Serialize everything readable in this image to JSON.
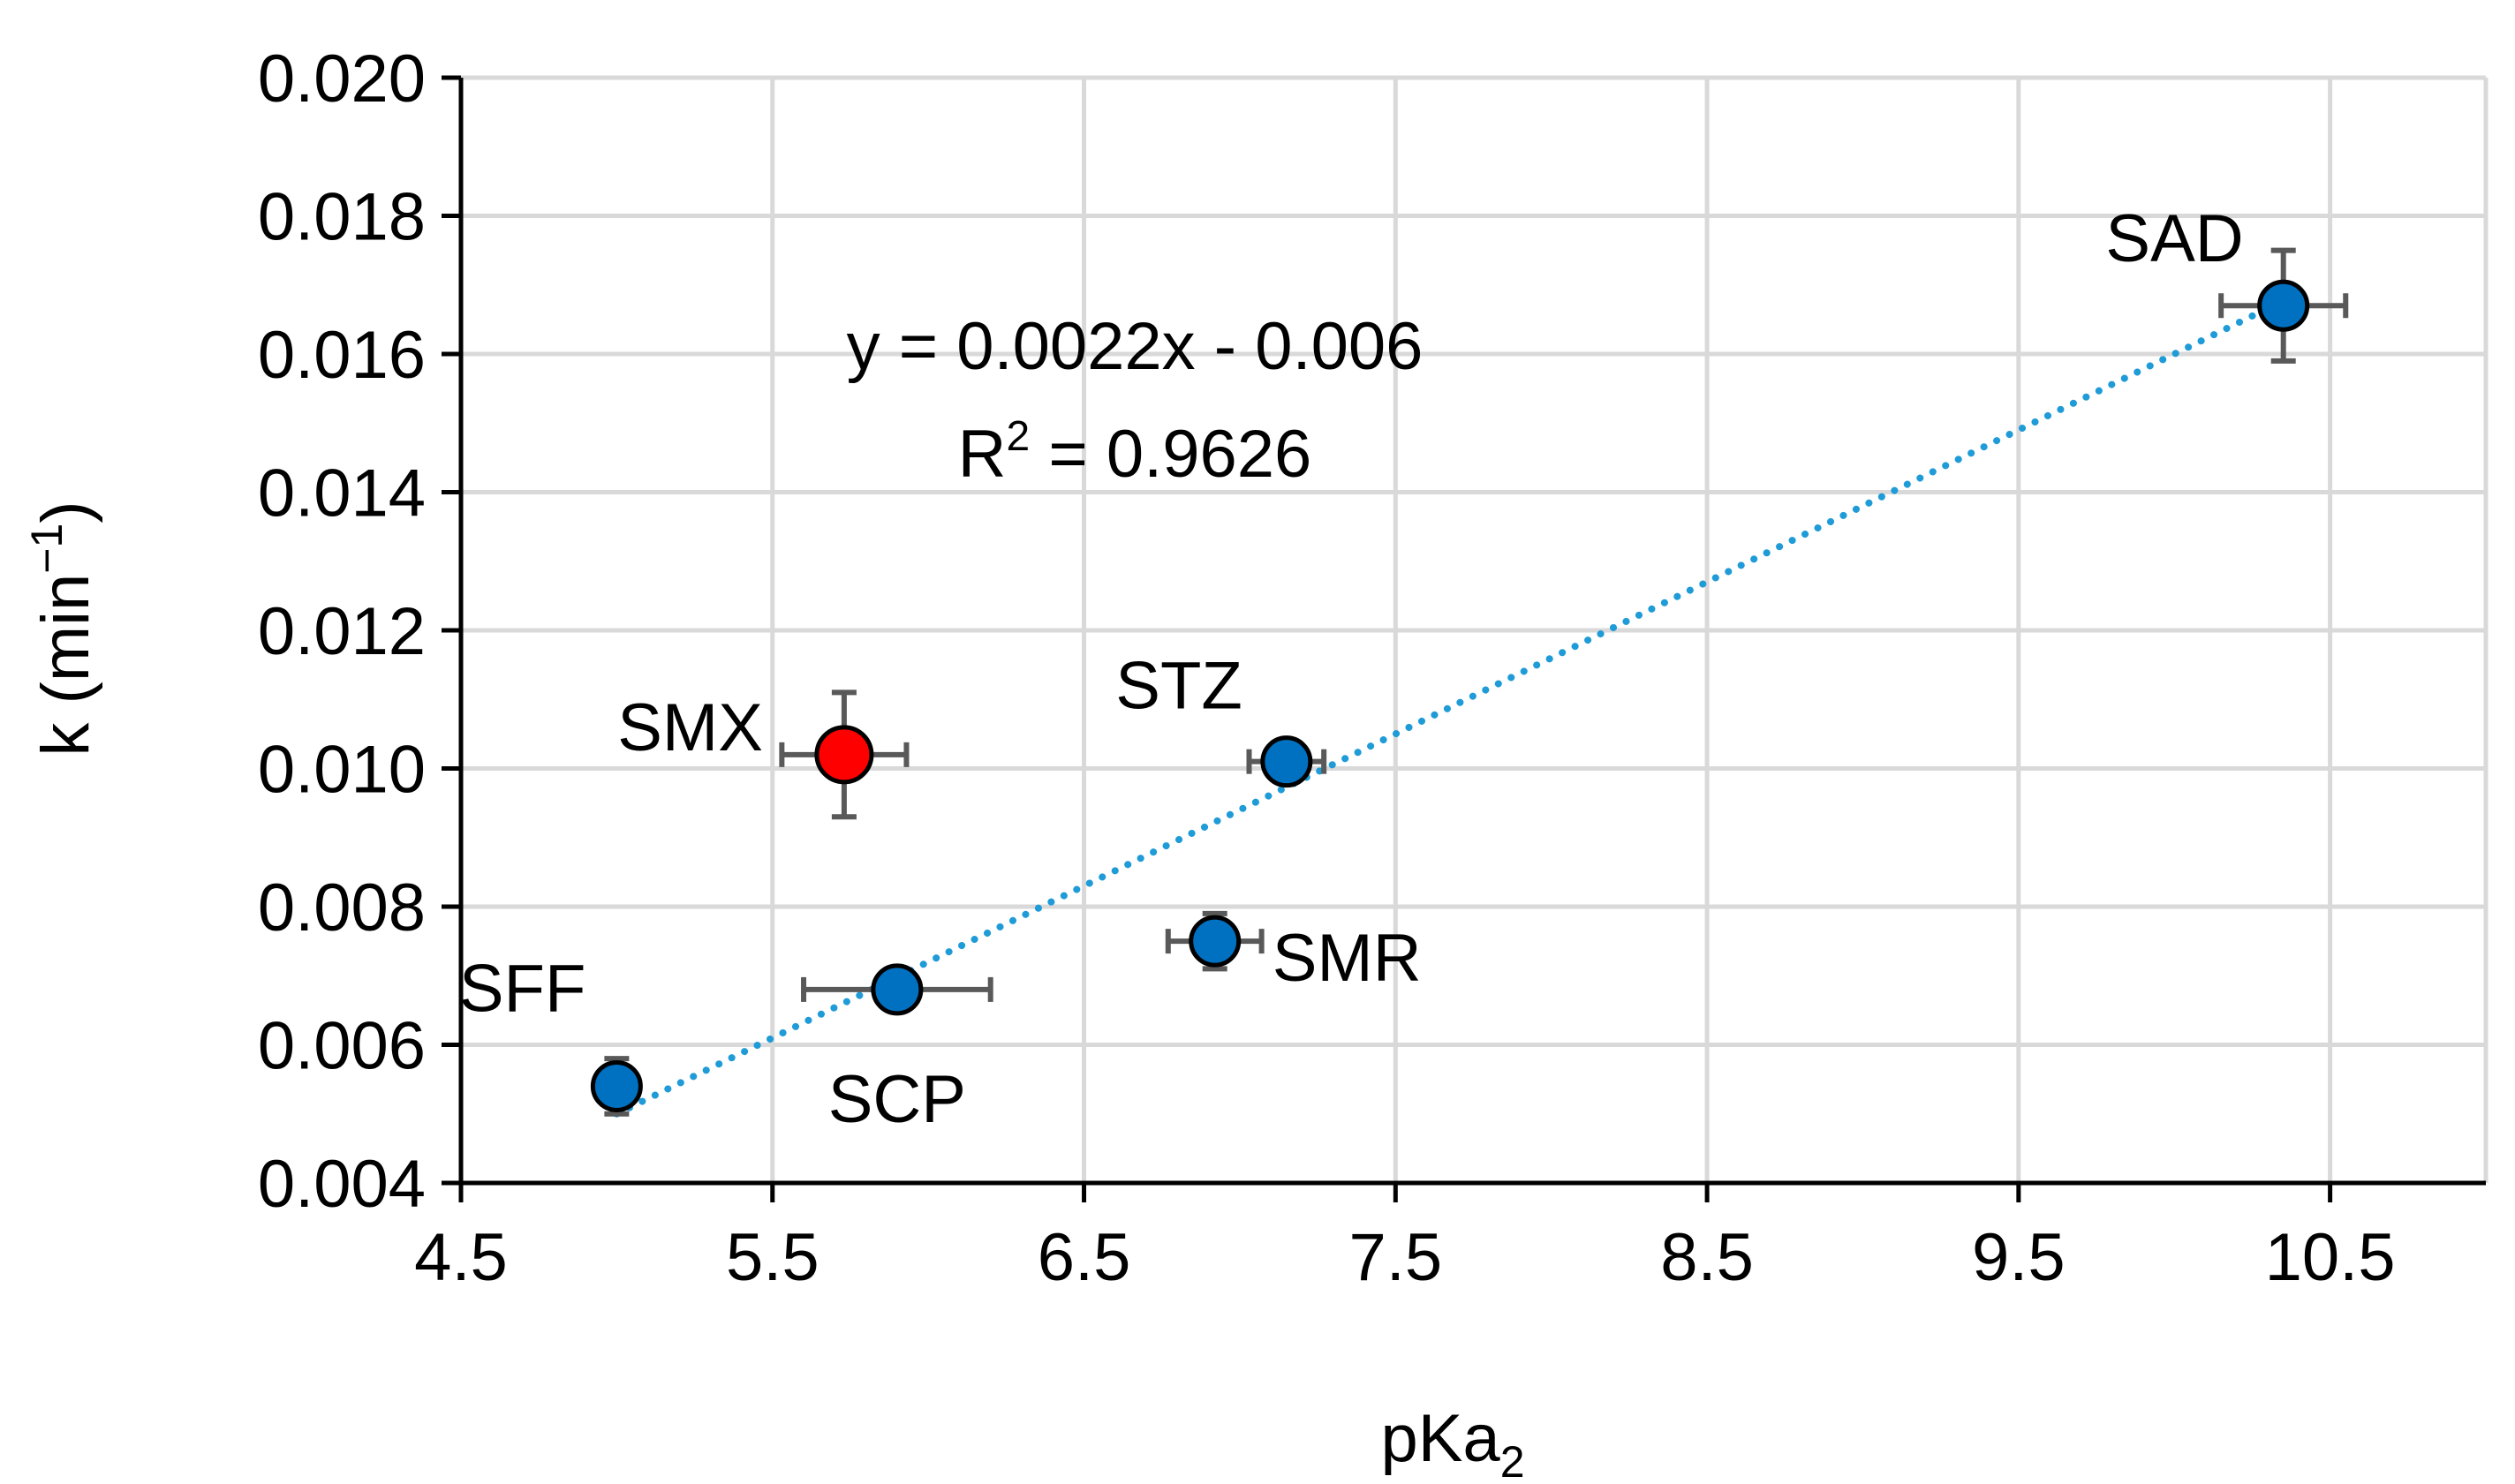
{
  "chart_data": {
    "type": "scatter",
    "title": "",
    "xlabel": "pKa",
    "xlabel_subscript": "2",
    "ylabel": "k (min",
    "ylabel_superscript": "−1",
    "ylabel_close": ")",
    "xlim": [
      4.5,
      11.0
    ],
    "ylim": [
      0.004,
      0.02
    ],
    "x_ticks": [
      4.5,
      5.5,
      6.5,
      7.5,
      8.5,
      9.5,
      10.5
    ],
    "x_tick_labels": [
      "4.5",
      "5.5",
      "6.5",
      "7.5",
      "8.5",
      "9.5",
      "10.5"
    ],
    "y_ticks": [
      0.004,
      0.006,
      0.008,
      0.01,
      0.012,
      0.014,
      0.016,
      0.018,
      0.02
    ],
    "y_tick_labels": [
      "0.004",
      "0.006",
      "0.008",
      "0.010",
      "0.012",
      "0.014",
      "0.016",
      "0.018",
      "0.020"
    ],
    "grid": true,
    "points": [
      {
        "label": "SFF",
        "x": 5.0,
        "y": 0.0054,
        "x_err": 0.0,
        "y_err": 0.0004,
        "color": "#0070c0",
        "label_pos": "above-left"
      },
      {
        "label": "SMX",
        "x": 5.73,
        "y": 0.0102,
        "x_err": 0.2,
        "y_err": 0.0009,
        "color": "#ff0000",
        "label_pos": "left"
      },
      {
        "label": "SCP",
        "x": 5.9,
        "y": 0.0068,
        "x_err": 0.3,
        "y_err": 0.0,
        "color": "#0070c0",
        "label_pos": "below"
      },
      {
        "label": "SMR",
        "x": 6.92,
        "y": 0.0075,
        "x_err": 0.15,
        "y_err": 0.0004,
        "color": "#0070c0",
        "label_pos": "right"
      },
      {
        "label": "STZ",
        "x": 7.15,
        "y": 0.0101,
        "x_err": 0.12,
        "y_err": 0.0,
        "color": "#0070c0",
        "label_pos": "above-left"
      },
      {
        "label": "SAD",
        "x": 10.35,
        "y": 0.0167,
        "x_err": 0.2,
        "y_err": 0.0008,
        "color": "#0070c0",
        "label_pos": "above-left"
      }
    ],
    "trendline": {
      "type": "linear",
      "slope": 0.0022,
      "intercept": -0.006,
      "x_range": [
        5.0,
        10.35
      ],
      "color": "#1f9bd7",
      "style": "dotted",
      "equation": "y = 0.0022x - 0.006",
      "r2_prefix": "R",
      "r2_superscript": "2",
      "r2_value": " = 0.9626"
    },
    "marker_edge_color": "#000000",
    "error_bar_color": "#595959"
  }
}
